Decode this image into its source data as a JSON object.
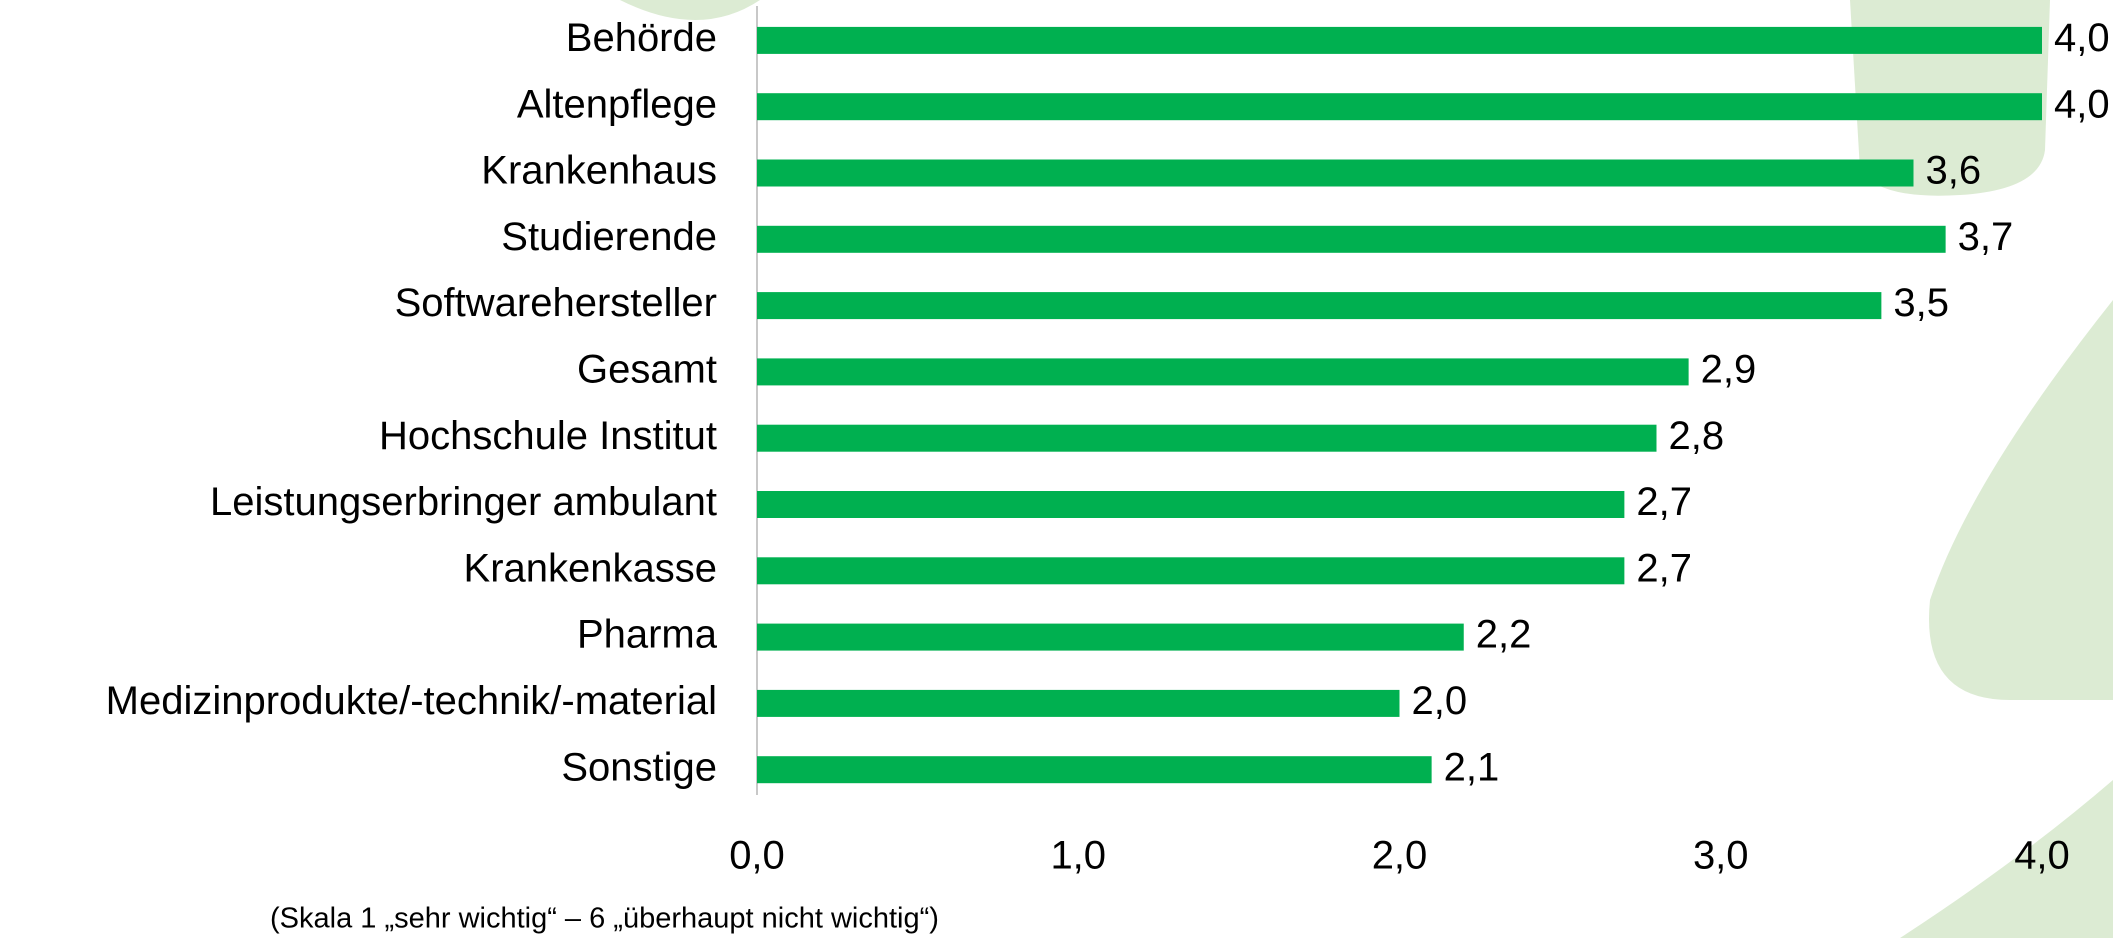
{
  "chart_data": {
    "type": "hbar",
    "categories": [
      "Behörde",
      "Altenpflege",
      "Krankenhaus",
      "Studierende",
      "Softwarehersteller",
      "Gesamt",
      "Hochschule Institut",
      "Leistungserbringer ambulant",
      "Krankenkasse",
      "Pharma",
      "Medizinprodukte/-technik/-material",
      "Sonstige"
    ],
    "values": [
      4.0,
      4.0,
      3.6,
      3.7,
      3.5,
      2.9,
      2.8,
      2.7,
      2.7,
      2.2,
      2.0,
      2.1
    ],
    "value_labels": [
      "4,0",
      "4,0",
      "3,6",
      "3,7",
      "3,5",
      "2,9",
      "2,8",
      "2,7",
      "2,7",
      "2,2",
      "2,0",
      "2,1"
    ],
    "color": "#00b050",
    "xlim": [
      0,
      4
    ],
    "xticks": [
      {
        "value": 0,
        "label": "0,0"
      },
      {
        "value": 1,
        "label": "1,0"
      },
      {
        "value": 2,
        "label": "2,0"
      },
      {
        "value": 3,
        "label": "3,0"
      },
      {
        "value": 4,
        "label": "4,0"
      }
    ],
    "note": "(Skala 1 „sehr wichtig“ – 6 „überhaupt nicht wichtig“)"
  }
}
